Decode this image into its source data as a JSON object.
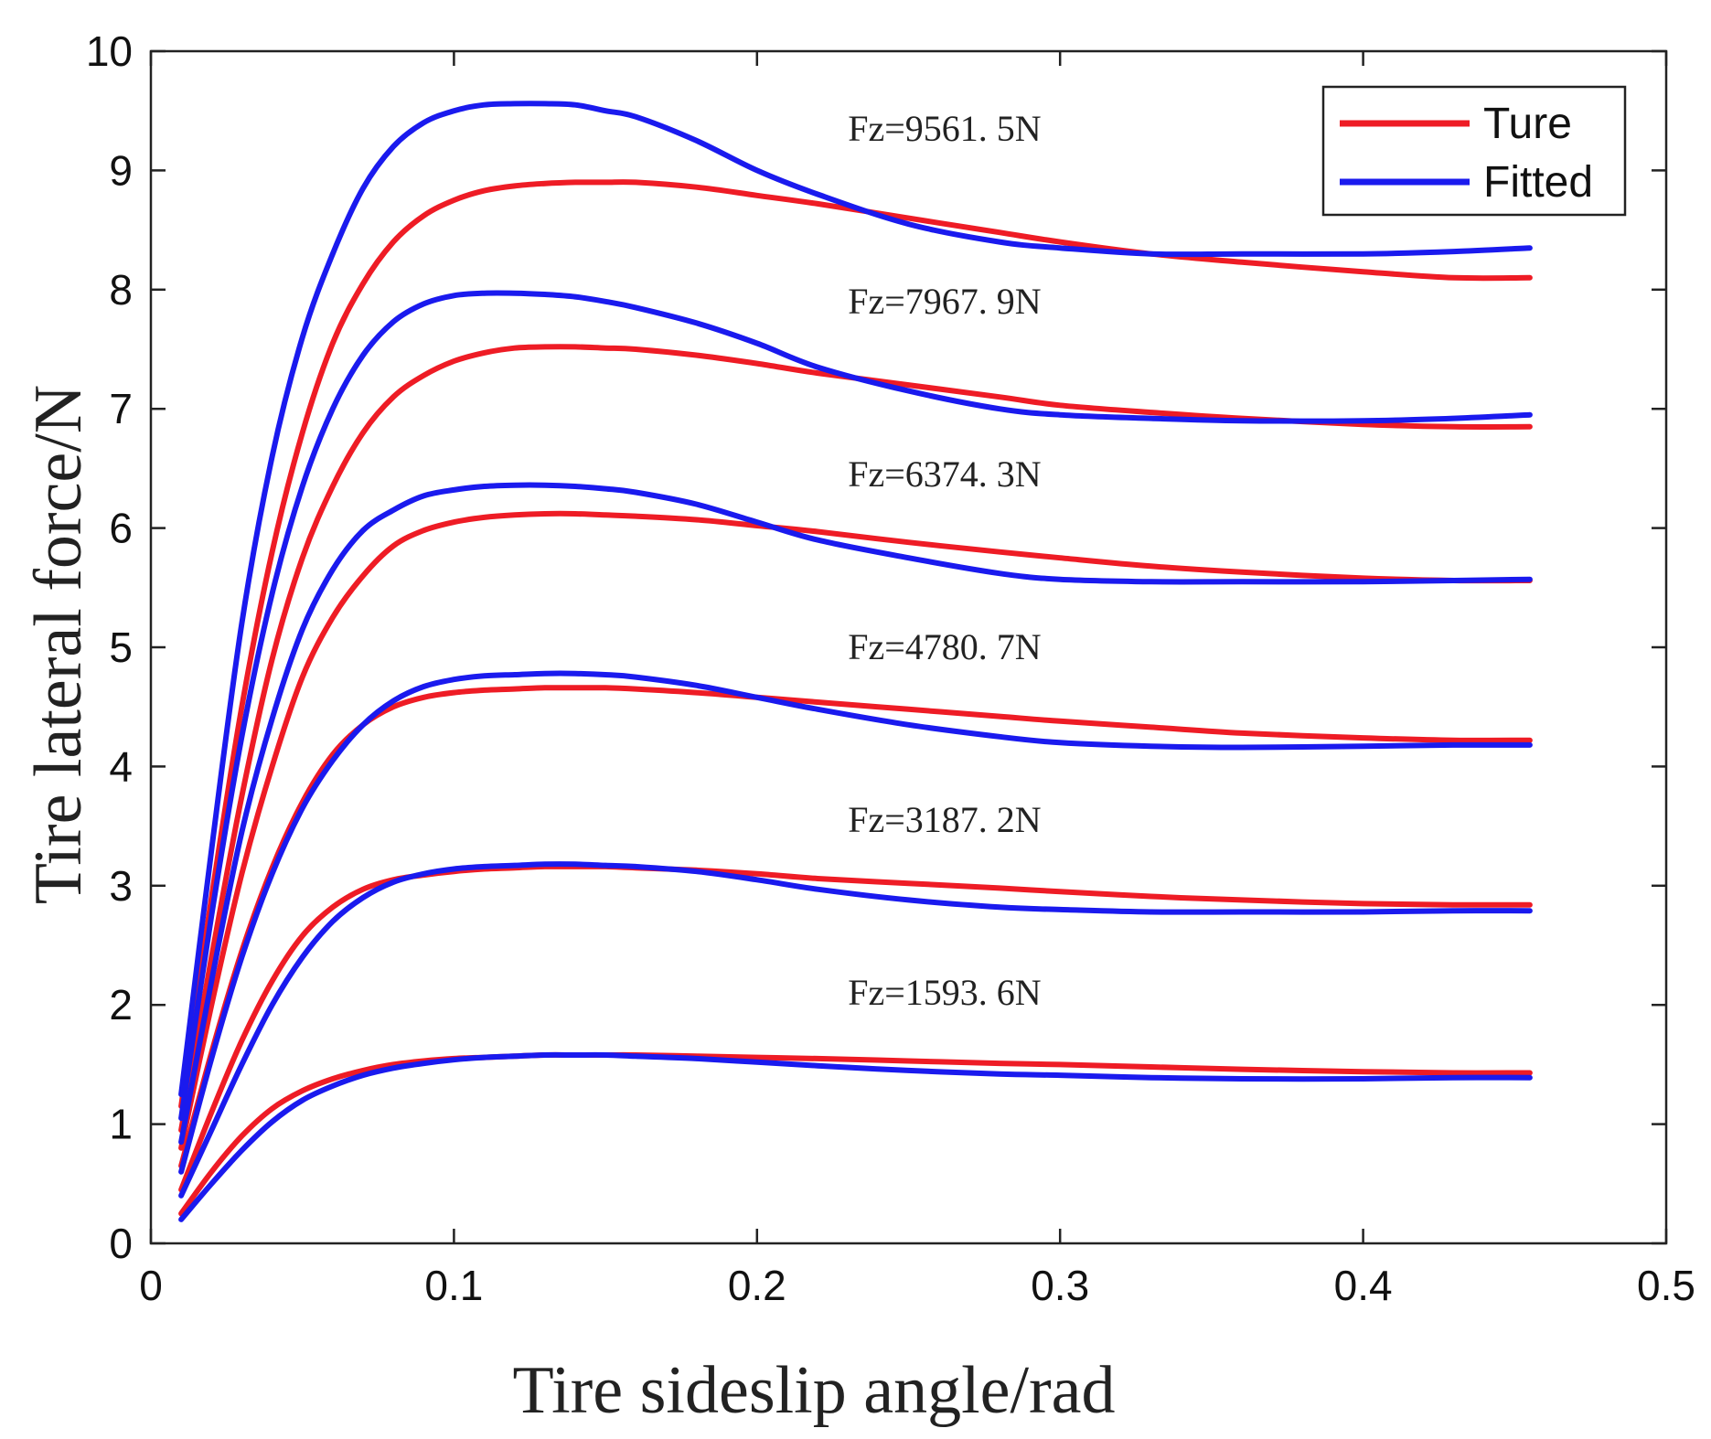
{
  "chart_data": {
    "type": "line",
    "title": "",
    "xlabel": "Tire sideslip angle/rad",
    "ylabel": "Tire lateral force/N",
    "xlim": [
      0,
      0.5
    ],
    "ylim": [
      0,
      10
    ],
    "xticks": [
      "0",
      "0.1",
      "0.2",
      "0.3",
      "0.4",
      "0.5"
    ],
    "yticks": [
      "0",
      "1",
      "2",
      "3",
      "4",
      "5",
      "6",
      "7",
      "8",
      "9",
      "10"
    ],
    "grid": false,
    "legend": {
      "position": "top-right",
      "entries": [
        {
          "name": "Ture",
          "color": "#ee1c25"
        },
        {
          "name": "Fitted",
          "color": "#1a1aee"
        }
      ]
    },
    "x": [
      0.01,
      0.02,
      0.03,
      0.04,
      0.05,
      0.06,
      0.07,
      0.08,
      0.09,
      0.1,
      0.11,
      0.12,
      0.13,
      0.14,
      0.15,
      0.16,
      0.18,
      0.2,
      0.22,
      0.25,
      0.28,
      0.3,
      0.33,
      0.36,
      0.4,
      0.43,
      0.455
    ],
    "groups": [
      {
        "label": "Fz=9561. 5N",
        "label_x": 0.23,
        "label_y": 9.25,
        "ture": [
          1.15,
          2.9,
          4.5,
          5.8,
          6.8,
          7.55,
          8.05,
          8.4,
          8.62,
          8.75,
          8.83,
          8.87,
          8.89,
          8.9,
          8.9,
          8.9,
          8.86,
          8.79,
          8.72,
          8.6,
          8.48,
          8.4,
          8.3,
          8.23,
          8.15,
          8.1,
          8.1
        ],
        "fitted": [
          1.25,
          3.3,
          5.2,
          6.6,
          7.6,
          8.3,
          8.85,
          9.2,
          9.4,
          9.5,
          9.55,
          9.56,
          9.56,
          9.55,
          9.5,
          9.45,
          9.25,
          9.0,
          8.8,
          8.55,
          8.4,
          8.35,
          8.3,
          8.3,
          8.3,
          8.32,
          8.35
        ]
      },
      {
        "label": "Fz=7967. 9N",
        "label_x": 0.23,
        "label_y": 7.8,
        "ture": [
          0.95,
          2.4,
          3.75,
          4.9,
          5.75,
          6.35,
          6.8,
          7.1,
          7.28,
          7.4,
          7.47,
          7.51,
          7.52,
          7.52,
          7.51,
          7.5,
          7.45,
          7.38,
          7.3,
          7.2,
          7.1,
          7.03,
          6.97,
          6.92,
          6.87,
          6.85,
          6.85
        ],
        "fitted": [
          1.05,
          2.75,
          4.25,
          5.45,
          6.35,
          7.0,
          7.45,
          7.73,
          7.88,
          7.95,
          7.97,
          7.97,
          7.96,
          7.94,
          7.9,
          7.85,
          7.72,
          7.55,
          7.35,
          7.15,
          7.0,
          6.95,
          6.92,
          6.9,
          6.9,
          6.92,
          6.95
        ]
      },
      {
        "label": "Fz=6374. 3N",
        "label_x": 0.23,
        "label_y": 6.35,
        "ture": [
          0.8,
          2.0,
          3.1,
          4.0,
          4.75,
          5.25,
          5.6,
          5.85,
          5.98,
          6.05,
          6.09,
          6.11,
          6.12,
          6.12,
          6.11,
          6.1,
          6.07,
          6.02,
          5.97,
          5.88,
          5.8,
          5.75,
          5.68,
          5.63,
          5.58,
          5.56,
          5.56
        ],
        "fitted": [
          0.85,
          2.2,
          3.45,
          4.4,
          5.15,
          5.65,
          5.98,
          6.15,
          6.27,
          6.32,
          6.35,
          6.36,
          6.36,
          6.35,
          6.33,
          6.3,
          6.2,
          6.05,
          5.9,
          5.75,
          5.62,
          5.57,
          5.55,
          5.55,
          5.55,
          5.56,
          5.57
        ]
      },
      {
        "label": "Fz=4780. 7N",
        "label_x": 0.23,
        "label_y": 4.9,
        "ture": [
          0.65,
          1.6,
          2.45,
          3.15,
          3.7,
          4.1,
          4.35,
          4.5,
          4.58,
          4.62,
          4.64,
          4.65,
          4.66,
          4.66,
          4.66,
          4.65,
          4.62,
          4.58,
          4.54,
          4.48,
          4.42,
          4.38,
          4.33,
          4.28,
          4.24,
          4.22,
          4.22
        ],
        "fitted": [
          0.6,
          1.55,
          2.4,
          3.1,
          3.65,
          4.05,
          4.35,
          4.55,
          4.67,
          4.73,
          4.76,
          4.77,
          4.78,
          4.78,
          4.77,
          4.75,
          4.68,
          4.58,
          4.48,
          4.35,
          4.25,
          4.2,
          4.17,
          4.16,
          4.17,
          4.18,
          4.18
        ]
      },
      {
        "label": "Fz=3187. 2N",
        "label_x": 0.23,
        "label_y": 3.45,
        "ture": [
          0.45,
          1.1,
          1.7,
          2.2,
          2.58,
          2.82,
          2.97,
          3.05,
          3.09,
          3.12,
          3.14,
          3.15,
          3.16,
          3.16,
          3.16,
          3.15,
          3.13,
          3.1,
          3.06,
          3.02,
          2.98,
          2.95,
          2.91,
          2.88,
          2.85,
          2.84,
          2.84
        ],
        "fitted": [
          0.4,
          0.95,
          1.5,
          2.0,
          2.4,
          2.7,
          2.9,
          3.03,
          3.1,
          3.14,
          3.16,
          3.17,
          3.18,
          3.18,
          3.17,
          3.16,
          3.12,
          3.05,
          2.97,
          2.88,
          2.82,
          2.8,
          2.78,
          2.78,
          2.78,
          2.79,
          2.79
        ]
      },
      {
        "label": "Fz=1593. 6N",
        "label_x": 0.23,
        "label_y": 2.0,
        "ture": [
          0.25,
          0.6,
          0.9,
          1.13,
          1.28,
          1.38,
          1.45,
          1.5,
          1.53,
          1.55,
          1.56,
          1.57,
          1.58,
          1.58,
          1.58,
          1.58,
          1.57,
          1.56,
          1.55,
          1.53,
          1.51,
          1.5,
          1.48,
          1.46,
          1.44,
          1.43,
          1.43
        ],
        "fitted": [
          0.2,
          0.5,
          0.78,
          1.02,
          1.2,
          1.32,
          1.41,
          1.47,
          1.51,
          1.54,
          1.56,
          1.57,
          1.58,
          1.58,
          1.58,
          1.57,
          1.55,
          1.52,
          1.49,
          1.45,
          1.42,
          1.41,
          1.39,
          1.38,
          1.38,
          1.39,
          1.39
        ]
      }
    ]
  }
}
